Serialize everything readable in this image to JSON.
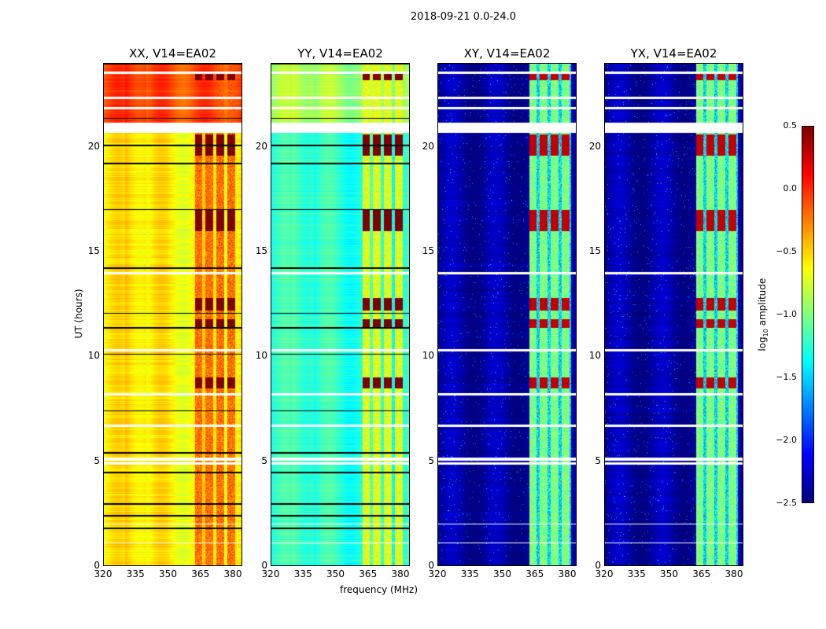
{
  "figure_title": "2018-09-21 0.0-24.0",
  "chart_data": {
    "type": "heatmap",
    "xlabel": "frequency (MHz)",
    "ylabel": "UT (hours)",
    "xlim": [
      320,
      384.4
    ],
    "ylim": [
      0,
      24
    ],
    "xticks": [
      "320",
      "335",
      "350",
      "365",
      "380"
    ],
    "yticks": [
      "0",
      "5",
      "10",
      "15",
      "20"
    ],
    "panels": [
      {
        "title": "XX, V14=EA02",
        "base_low": -0.6,
        "base_high": -0.1,
        "band_level": -0.2,
        "flare_level": 0.35,
        "draw_black_rows": true
      },
      {
        "title": "YY, V14=EA02",
        "base_low": -1.25,
        "base_high": -0.9,
        "band_level": -0.7,
        "flare_level": 0.3,
        "draw_black_rows": true
      },
      {
        "title": "XY, V14=EA02",
        "base_low": -2.4,
        "base_high": -2.4,
        "band_level": -1.0,
        "flare_level": 0.0,
        "draw_black_rows": false
      },
      {
        "title": "YX, V14=EA02",
        "base_low": -2.4,
        "base_high": -2.4,
        "band_level": -1.0,
        "flare_level": 0.0,
        "draw_black_rows": false
      }
    ],
    "rfi_band_centers_mhz": [
      364,
      369,
      374,
      379
    ],
    "flare_hours": [
      [
        23.2,
        23.5
      ],
      [
        19.6,
        20.6
      ],
      [
        16.0,
        17.0
      ],
      [
        12.2,
        12.8
      ],
      [
        11.4,
        11.8
      ],
      [
        8.5,
        9.0
      ]
    ],
    "flagged_hours": [
      [
        23.5,
        23.6
      ],
      [
        22.3,
        22.4
      ],
      [
        21.8,
        21.9
      ],
      [
        20.7,
        21.15
      ],
      [
        13.95,
        14.05
      ],
      [
        10.25,
        10.35
      ],
      [
        8.15,
        8.25
      ],
      [
        6.65,
        6.75
      ],
      [
        5.05,
        5.2
      ],
      [
        4.85,
        4.95
      ],
      [
        2.0,
        2.05
      ],
      [
        1.1,
        1.15
      ]
    ],
    "black_hours": [
      [
        24.0,
        23.95
      ],
      [
        21.35,
        21.4
      ],
      [
        20.05,
        20.1
      ],
      [
        19.2,
        19.25
      ],
      [
        17.0,
        17.05
      ],
      [
        14.2,
        14.25
      ],
      [
        12.05,
        12.1
      ],
      [
        11.35,
        11.4
      ],
      [
        10.1,
        10.15
      ],
      [
        7.4,
        7.45
      ],
      [
        5.4,
        5.45
      ],
      [
        4.45,
        4.5
      ],
      [
        2.95,
        3.0
      ],
      [
        2.4,
        2.45
      ],
      [
        1.8,
        1.85
      ]
    ],
    "colorbar": {
      "label_prefix": "log",
      "label_sub": "10",
      "label_suffix": " amplitude",
      "vmin": -2.5,
      "vmax": 0.5,
      "ticks": [
        "0.5",
        "0.0",
        "−0.5",
        "−1.0",
        "−1.5",
        "−2.0",
        "−2.5"
      ],
      "colormap": "jet"
    }
  }
}
